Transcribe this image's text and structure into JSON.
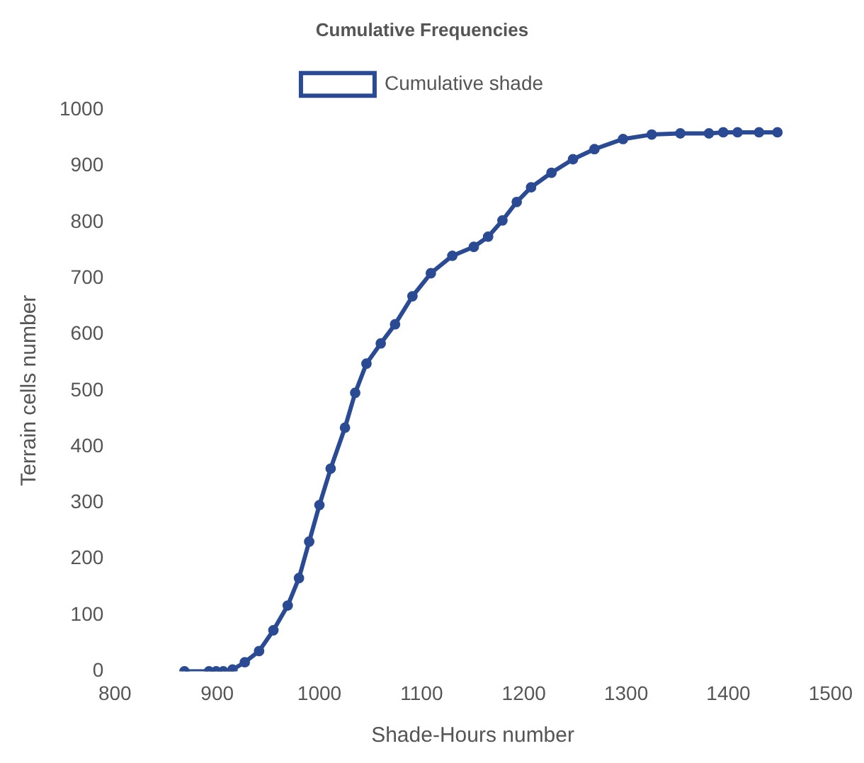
{
  "chart_data": {
    "type": "line",
    "title": "Cumulative Frequencies",
    "xlabel": "Shade-Hours number",
    "ylabel": "Terrain cells number",
    "x": [
      868,
      892,
      899,
      906,
      915,
      927,
      941,
      955,
      969,
      980,
      990,
      1000,
      1011,
      1025,
      1035,
      1046,
      1060,
      1074,
      1091,
      1109,
      1130,
      1151,
      1165,
      1179,
      1193,
      1207,
      1227,
      1248,
      1269,
      1297,
      1325,
      1353,
      1381,
      1395,
      1409,
      1430,
      1448
    ],
    "series": [
      {
        "name": "Cumulative shade",
        "color": "#2b4a94",
        "values": [
          0,
          0,
          0,
          0,
          3,
          16,
          36,
          73,
          117,
          166,
          231,
          296,
          361,
          434,
          496,
          548,
          584,
          618,
          668,
          709,
          740,
          756,
          774,
          803,
          836,
          862,
          888,
          912,
          930,
          948,
          956,
          958,
          958,
          960,
          960,
          960,
          960
        ]
      }
    ],
    "xlim": [
      800,
      1500
    ],
    "xticks": [
      800,
      900,
      1000,
      1100,
      1200,
      1300,
      1400,
      1500
    ],
    "ylim": [
      0,
      1000
    ],
    "yticks": [
      0,
      100,
      200,
      300,
      400,
      500,
      600,
      700,
      800,
      900,
      1000
    ],
    "grid": false,
    "legend": "top",
    "marker": "circle",
    "line_style": "solid"
  }
}
